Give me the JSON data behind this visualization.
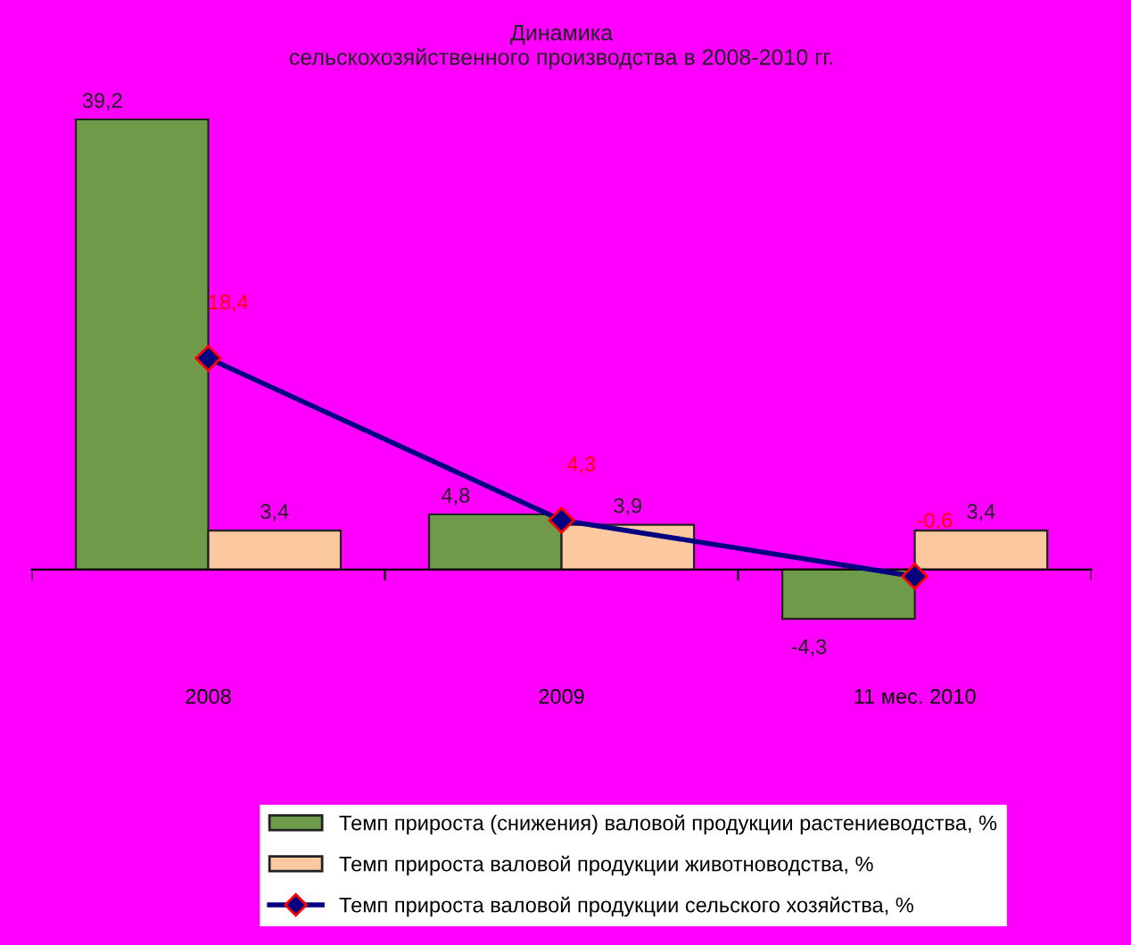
{
  "chart_data": {
    "type": "bar",
    "title": "Динамика\nсельскохозяйственного производства в 2008-2010 гг.",
    "categories": [
      "2008",
      "2009",
      "11 мес. 2010"
    ],
    "series": [
      {
        "name": "Темп прироста (снижения) валовой продукции растениеводства, %",
        "color": "#6f9a4a",
        "values": [
          39.2,
          4.8,
          -4.3
        ],
        "value_labels": [
          "39,2",
          "4,8",
          "-4,3"
        ]
      },
      {
        "name": "Темп прироста валовой продукции животноводства, %",
        "color": "#fbc8a0",
        "values": [
          3.4,
          3.9,
          3.4
        ],
        "value_labels": [
          "3,4",
          "3,9",
          "3,4"
        ]
      },
      {
        "name": "Темп прироста валовой продукции сельского хозяйства, %",
        "type": "line",
        "color": "#000080",
        "values": [
          18.4,
          4.3,
          -0.6
        ],
        "value_labels": [
          "18,4",
          "4,3",
          "-0,6"
        ],
        "marker": "diamond"
      }
    ],
    "legend": "bottom",
    "grid": false,
    "tick_labels": "x"
  }
}
